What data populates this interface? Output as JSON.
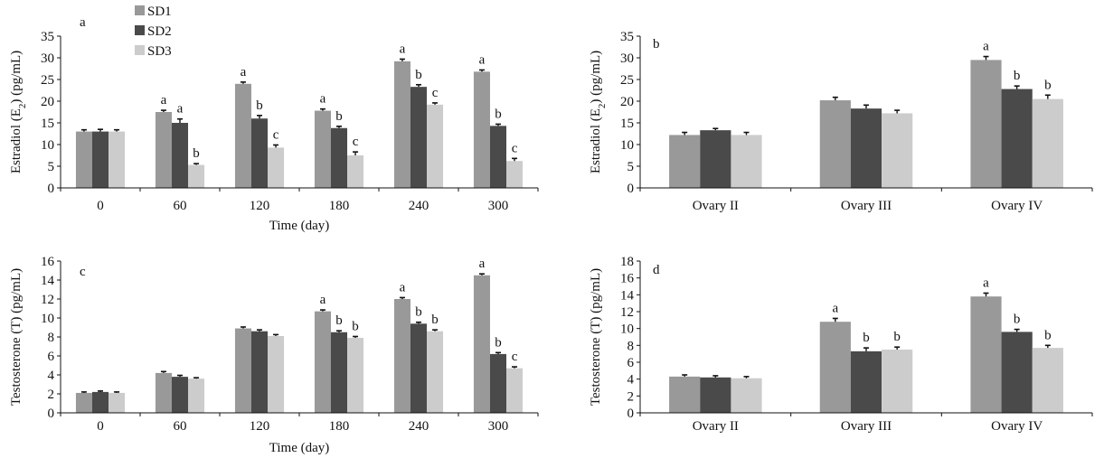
{
  "legend": {
    "series": [
      "SD1",
      "SD2",
      "SD3"
    ],
    "colors": [
      "#999999",
      "#4a4a4a",
      "#cccccc"
    ]
  },
  "chart_data": [
    {
      "type": "bar",
      "panel": "a",
      "categories": [
        "0",
        "60",
        "120",
        "180",
        "240",
        "300"
      ],
      "xlabel": "Time (day)",
      "ylabel": "Estradiol (E2) (pg/mL)",
      "ylabel_parts": {
        "prefix": "Estradiol (E",
        "sub": "2",
        "suffix": ") (pg/mL)"
      },
      "ylim": [
        0,
        35
      ],
      "yticks": [
        0,
        5,
        10,
        15,
        20,
        25,
        30,
        35
      ],
      "series": [
        {
          "name": "SD1",
          "values": [
            13,
            17.5,
            24,
            17.8,
            29.2,
            26.8
          ],
          "errors": [
            0.4,
            0.4,
            0.4,
            0.4,
            0.5,
            0.4
          ],
          "letters": [
            "",
            "a",
            "a",
            "a",
            "a",
            "a"
          ]
        },
        {
          "name": "SD2",
          "values": [
            13,
            15,
            16,
            13.8,
            23.3,
            14.3
          ],
          "errors": [
            0.5,
            0.9,
            0.7,
            0.4,
            0.5,
            0.4
          ],
          "letters": [
            "",
            "a",
            "b",
            "b",
            "b",
            "b"
          ]
        },
        {
          "name": "SD3",
          "values": [
            13,
            5.3,
            9.3,
            7.5,
            19.2,
            6.2
          ],
          "errors": [
            0.4,
            0.3,
            0.6,
            0.8,
            0.4,
            0.6
          ],
          "letters": [
            "",
            "b",
            "c",
            "c",
            "c",
            "c"
          ]
        }
      ]
    },
    {
      "type": "bar",
      "panel": "b",
      "categories": [
        "Ovary II",
        "Ovary III",
        "Ovary IV"
      ],
      "xlabel": "",
      "ylabel": "Estradiol (E2) (pg/mL)",
      "ylabel_parts": {
        "prefix": "Estradiol (E",
        "sub": "2",
        "suffix": ") (pg/mL)"
      },
      "ylim": [
        0,
        35
      ],
      "yticks": [
        0,
        5,
        10,
        15,
        20,
        25,
        30,
        35
      ],
      "series": [
        {
          "name": "SD1",
          "values": [
            12.2,
            20.2,
            29.5
          ],
          "errors": [
            0.6,
            0.7,
            0.8
          ],
          "letters": [
            "",
            "",
            "a"
          ]
        },
        {
          "name": "SD2",
          "values": [
            13.3,
            18.3,
            22.8
          ],
          "errors": [
            0.4,
            0.8,
            0.7
          ],
          "letters": [
            "",
            "",
            "b"
          ]
        },
        {
          "name": "SD3",
          "values": [
            12.2,
            17.2,
            20.5
          ],
          "errors": [
            0.6,
            0.7,
            0.9
          ],
          "letters": [
            "",
            "",
            "b"
          ]
        }
      ]
    },
    {
      "type": "bar",
      "panel": "c",
      "categories": [
        "0",
        "60",
        "120",
        "180",
        "240",
        "300"
      ],
      "xlabel": "Time (day)",
      "ylabel": "Testosterone (T) (pg/mL)",
      "ylim": [
        0,
        16
      ],
      "yticks": [
        0,
        2,
        4,
        6,
        8,
        10,
        12,
        14,
        16
      ],
      "series": [
        {
          "name": "SD1",
          "values": [
            2.1,
            4.2,
            8.9,
            10.7,
            12.0,
            14.5
          ],
          "errors": [
            0.1,
            0.15,
            0.15,
            0.15,
            0.15,
            0.15
          ],
          "letters": [
            "",
            "",
            "",
            "a",
            "a",
            "a"
          ]
        },
        {
          "name": "SD2",
          "values": [
            2.2,
            3.8,
            8.6,
            8.5,
            9.4,
            6.2
          ],
          "errors": [
            0.1,
            0.15,
            0.15,
            0.15,
            0.15,
            0.15
          ],
          "letters": [
            "",
            "",
            "",
            "b",
            "b",
            "b"
          ]
        },
        {
          "name": "SD3",
          "values": [
            2.1,
            3.6,
            8.1,
            7.9,
            8.6,
            4.7
          ],
          "errors": [
            0.1,
            0.1,
            0.15,
            0.15,
            0.15,
            0.15
          ],
          "letters": [
            "",
            "",
            "",
            "b",
            "b",
            "c"
          ]
        }
      ]
    },
    {
      "type": "bar",
      "panel": "d",
      "categories": [
        "Ovary II",
        "Ovary III",
        "Ovary IV"
      ],
      "xlabel": "",
      "ylabel": "Testosterone (T) (pg/mL)",
      "ylim": [
        0,
        18
      ],
      "yticks": [
        0,
        2,
        4,
        6,
        8,
        10,
        12,
        14,
        16,
        18
      ],
      "series": [
        {
          "name": "SD1",
          "values": [
            4.3,
            10.8,
            13.8
          ],
          "errors": [
            0.2,
            0.4,
            0.4
          ],
          "letters": [
            "",
            "a",
            "a"
          ]
        },
        {
          "name": "SD2",
          "values": [
            4.2,
            7.3,
            9.6
          ],
          "errors": [
            0.2,
            0.4,
            0.3
          ],
          "letters": [
            "",
            "b",
            "b"
          ]
        },
        {
          "name": "SD3",
          "values": [
            4.1,
            7.5,
            7.7
          ],
          "errors": [
            0.2,
            0.3,
            0.3
          ],
          "letters": [
            "",
            "b",
            "b"
          ]
        }
      ]
    }
  ]
}
